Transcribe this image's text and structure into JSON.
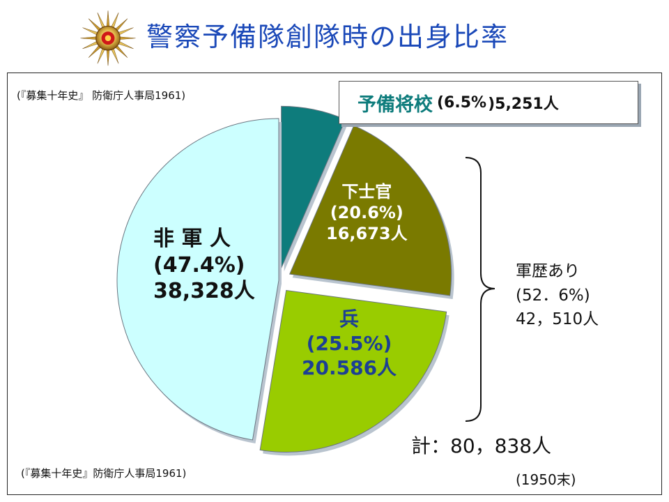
{
  "header": {
    "title": "警察予備隊創隊時の出身比率",
    "emblem_icon": "police-reserve-emblem-icon"
  },
  "source_top": "(『募集十年史』 防衛庁人事局1961)",
  "source_bottom": "(『募集十年史』防衛庁人事局1961)",
  "callout": {
    "name": "予備将校",
    "percent": "(6.5%",
    "count": ")5,251人"
  },
  "labels": {
    "civilian": {
      "name": "非 軍 人",
      "percent": "(47.4%)",
      "count": "38,328人"
    },
    "nco": {
      "name": "下士官",
      "percent": "(20.6%)",
      "count": "16,673人"
    },
    "soldier": {
      "name": "兵",
      "percent": "(25.5%)",
      "count": "20.586人"
    }
  },
  "military_experience": {
    "label": "軍歴あり",
    "percent": "(52．6%)",
    "count": "42，510人"
  },
  "total": "計：80，838人",
  "date_note": "(1950末)",
  "colors": {
    "title": "#1a48b8",
    "officers": "#0e7c7c",
    "nco": "#7a7a00",
    "soldier": "#99cc00",
    "civilian": "#ccffff"
  },
  "chart_data": {
    "type": "pie",
    "title": "警察予備隊創隊時の出身比率",
    "categories": [
      "予備将校",
      "下士官",
      "兵",
      "非軍人"
    ],
    "values": [
      5251,
      16673,
      20586,
      38328
    ],
    "percents": [
      6.5,
      20.6,
      25.5,
      47.4
    ],
    "colors": [
      "#0e7c7c",
      "#7a7a00",
      "#99cc00",
      "#ccffff"
    ],
    "exploded": [
      true,
      true,
      true,
      false
    ],
    "total": 80838
  }
}
